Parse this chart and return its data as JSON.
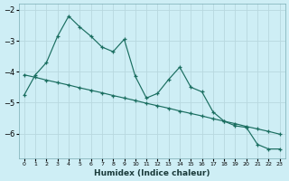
{
  "xlabel": "Humidex (Indice chaleur)",
  "background_color": "#ceeef5",
  "grid_color": "#b8d8df",
  "line_color": "#1a6e60",
  "x": [
    0,
    1,
    2,
    3,
    4,
    5,
    6,
    7,
    8,
    9,
    10,
    11,
    12,
    13,
    14,
    15,
    16,
    17,
    18,
    19,
    20,
    21,
    22,
    23
  ],
  "y_zigzag": [
    -4.75,
    -4.1,
    -3.7,
    -2.85,
    -2.2,
    -2.55,
    -2.85,
    -3.2,
    -3.35,
    -2.95,
    -4.15,
    -4.85,
    -4.7,
    -4.25,
    -3.85,
    -4.5,
    -4.65,
    -5.3,
    -5.6,
    -5.75,
    -5.8,
    -6.35,
    -6.5,
    -6.5
  ],
  "y_trend": [
    -4.1,
    -4.18,
    -4.27,
    -4.35,
    -4.43,
    -4.52,
    -4.6,
    -4.68,
    -4.77,
    -4.85,
    -4.93,
    -5.02,
    -5.1,
    -5.18,
    -5.27,
    -5.35,
    -5.43,
    -5.52,
    -5.6,
    -5.68,
    -5.77,
    -5.85,
    -5.93,
    -6.02
  ],
  "ylim": [
    -6.8,
    -1.8
  ],
  "xlim": [
    -0.5,
    23.5
  ],
  "yticks": [
    -6,
    -5,
    -4,
    -3,
    -2
  ],
  "xtick_labels": [
    "0",
    "1",
    "2",
    "3",
    "4",
    "5",
    "6",
    "7",
    "8",
    "9",
    "10",
    "11",
    "12",
    "13",
    "14",
    "15",
    "16",
    "17",
    "18",
    "19",
    "20",
    "21",
    "22",
    "23"
  ],
  "figsize": [
    3.2,
    2.0
  ],
  "dpi": 100
}
